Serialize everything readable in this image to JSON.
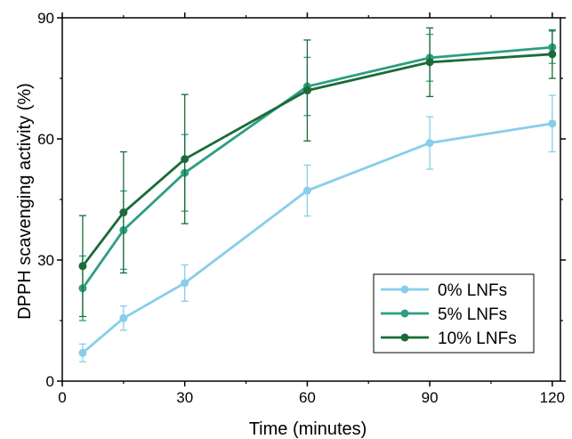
{
  "chart_data": {
    "type": "line",
    "xlabel": "Time (minutes)",
    "ylabel": "DPPH scavenging activity (%)",
    "xlim": [
      0,
      122
    ],
    "ylim": [
      0,
      90
    ],
    "x_ticks": [
      "0",
      "30",
      "60",
      "90",
      "120"
    ],
    "y_ticks": [
      "0",
      "30",
      "60",
      "90"
    ],
    "grid": false,
    "legend_position": "lower-right",
    "x": [
      5,
      15,
      30,
      60,
      90,
      120
    ],
    "series": [
      {
        "name": "0% LNFs",
        "color": "#87ceeb",
        "values": [
          7,
          15.6,
          24.3,
          47.2,
          59,
          63.8
        ],
        "errors": [
          2.2,
          3,
          4.5,
          6.3,
          6.5,
          7
        ]
      },
      {
        "name": "5% LNFs",
        "color": "#2e9e83",
        "values": [
          23,
          37.4,
          51.6,
          73,
          80.1,
          82.7
        ],
        "errors": [
          8,
          9.7,
          9.5,
          7.2,
          5.8,
          4
        ]
      },
      {
        "name": "10% LNFs",
        "color": "#1a6b38",
        "values": [
          28.5,
          41.8,
          55,
          72,
          79,
          81
        ],
        "errors": [
          12.5,
          15,
          16,
          12.5,
          8.5,
          6
        ]
      }
    ]
  }
}
